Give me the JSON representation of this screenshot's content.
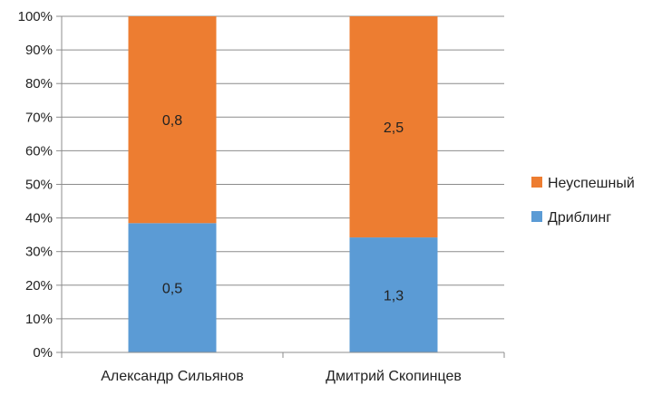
{
  "chart_data": {
    "type": "bar",
    "stacked": "percent",
    "categories": [
      "Александр Сильянов",
      "Дмитрий Скопинцев"
    ],
    "series": [
      {
        "name": "Дриблинг",
        "values": [
          0.5,
          1.3
        ],
        "labels": [
          "0,5",
          "1,3"
        ],
        "color": "#5b9bd5"
      },
      {
        "name": "Неуспешный",
        "values": [
          0.8,
          2.5
        ],
        "labels": [
          "0,8",
          "2,5"
        ],
        "color": "#ed7d31"
      }
    ],
    "yticks": [
      "0%",
      "10%",
      "20%",
      "30%",
      "40%",
      "50%",
      "60%",
      "70%",
      "80%",
      "90%",
      "100%"
    ],
    "ylim": [
      0,
      100
    ],
    "grid": true,
    "legend_position": "right",
    "legend_order": [
      "Неуспешный",
      "Дриблинг"
    ],
    "title": "",
    "xlabel": "",
    "ylabel": ""
  }
}
